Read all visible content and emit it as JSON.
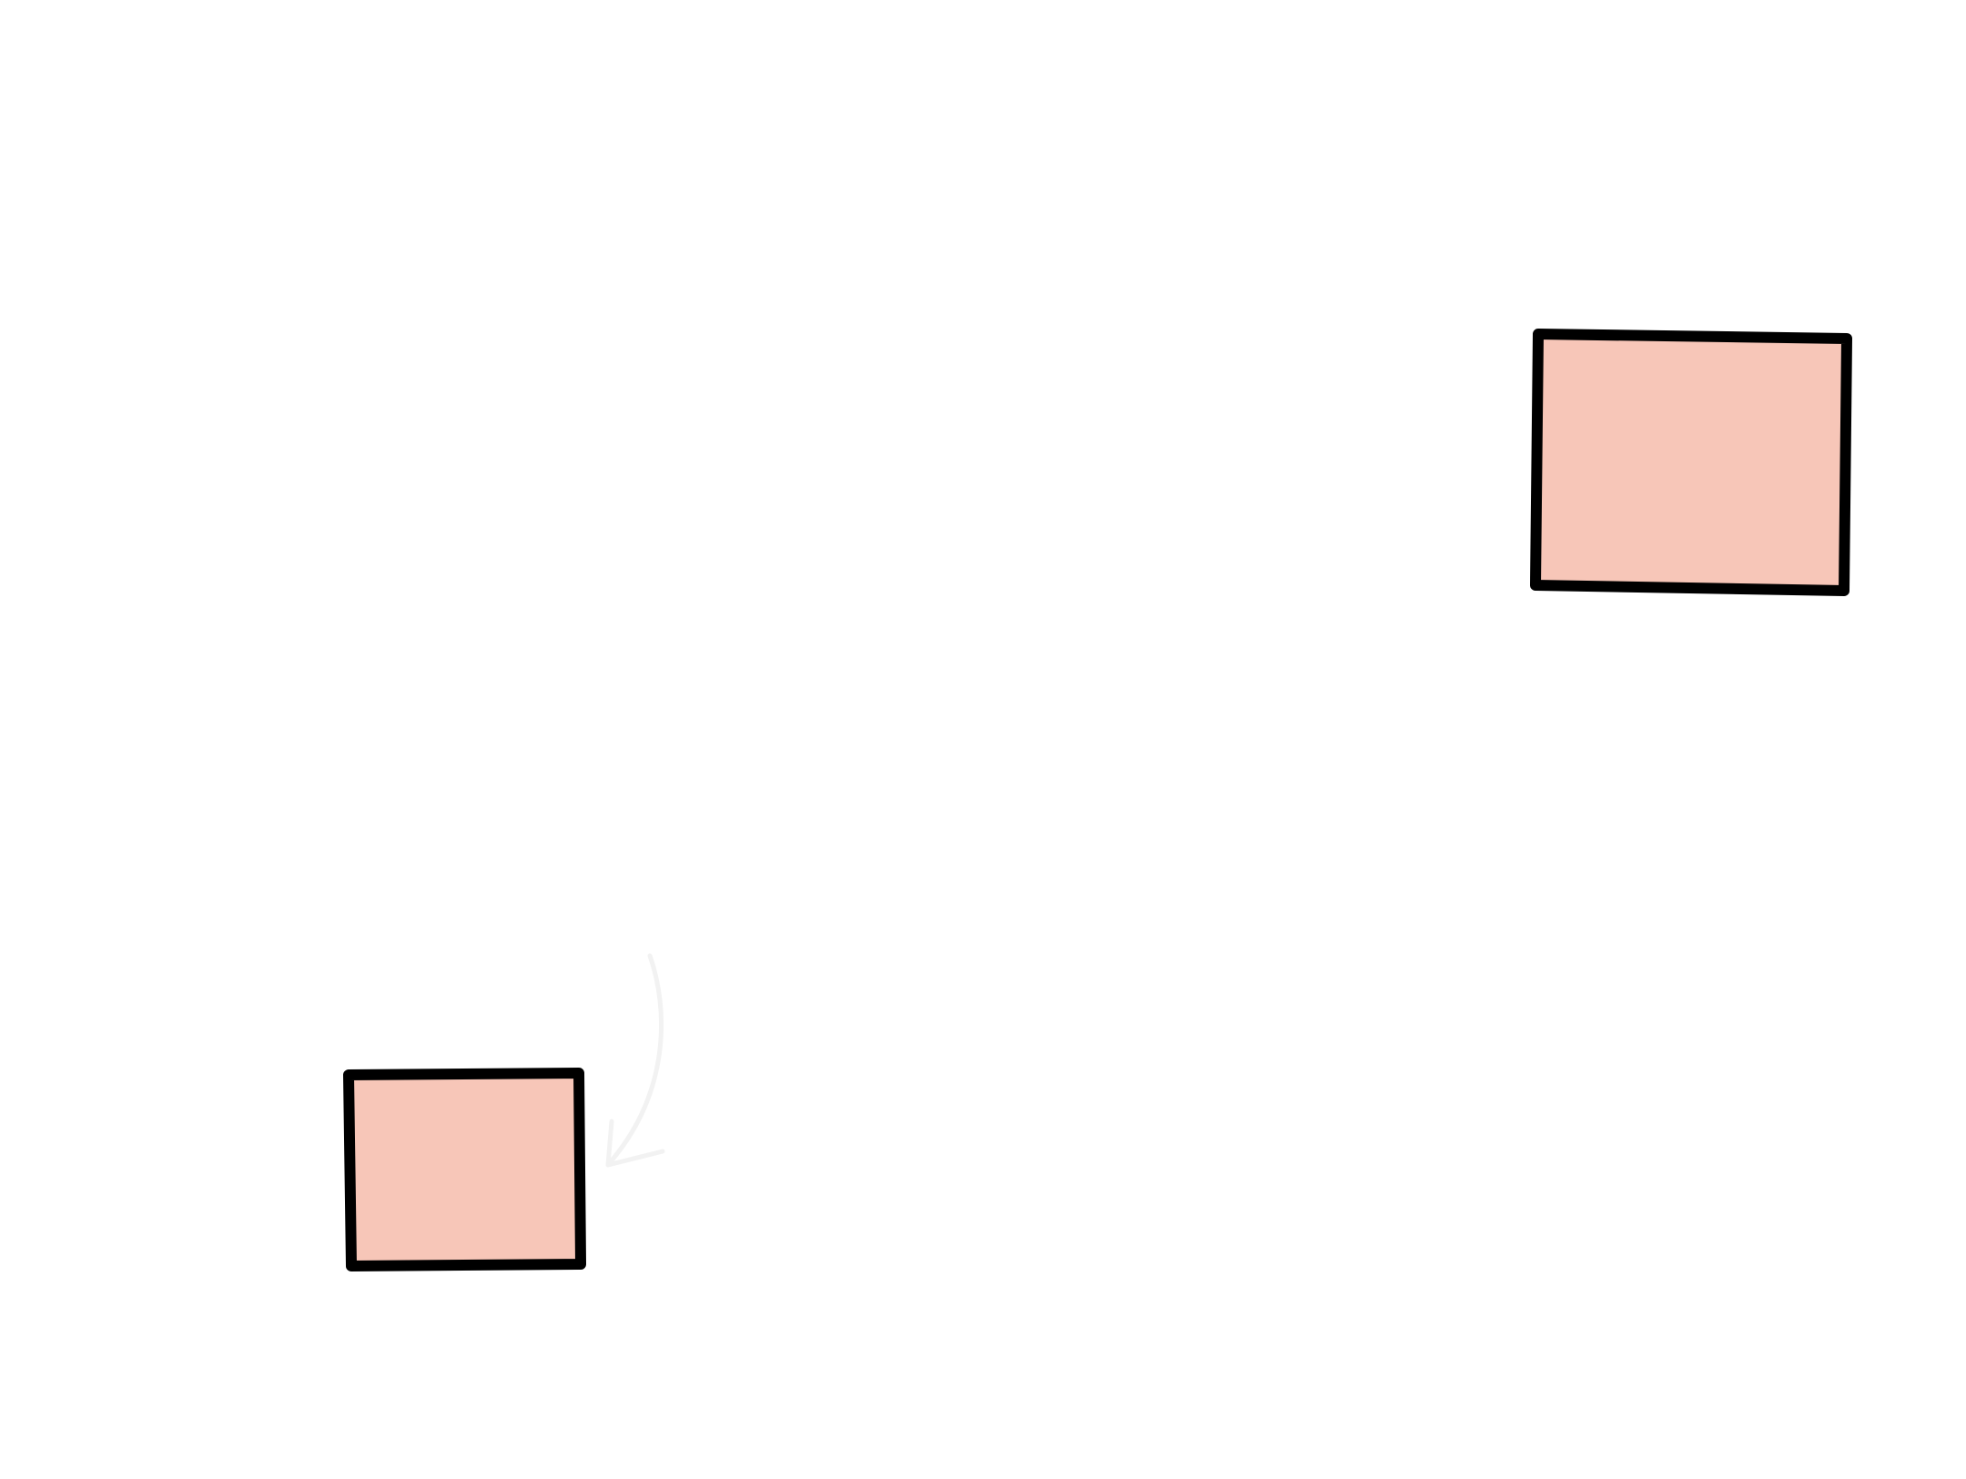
{
  "canvas": {
    "background": "#ffffff"
  },
  "shapes": [
    {
      "id": "rectangle-top-right",
      "kind": "rectangle",
      "fill": "#f7c6b8",
      "stroke": "#000000"
    },
    {
      "id": "rectangle-bottom-left",
      "kind": "rectangle",
      "fill": "#f7c6b8",
      "stroke": "#000000"
    }
  ],
  "connectors": [
    {
      "id": "faint-curved-arrow",
      "kind": "curved-arrow",
      "color": "#f2f2f2",
      "target": "rectangle-bottom-left"
    }
  ]
}
